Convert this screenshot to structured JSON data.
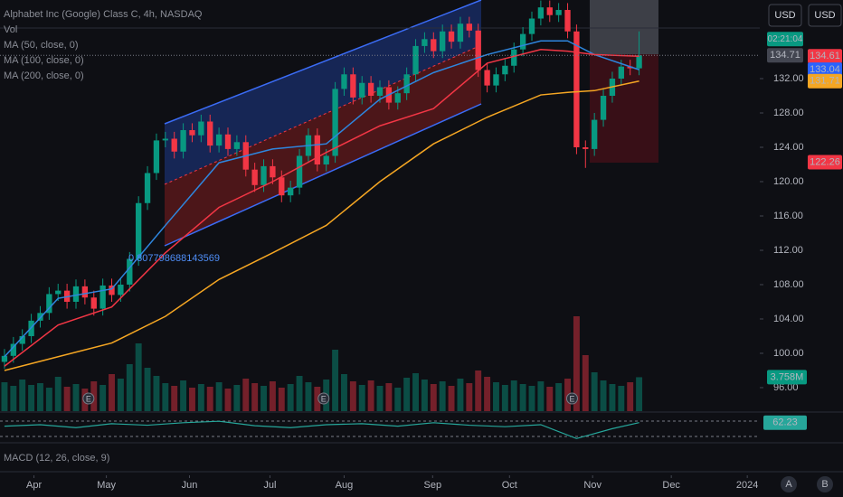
{
  "chart_data": {
    "type": "candlestick",
    "title": "Alphabet Inc (Google) Class C, 4h, NASDAQ",
    "legend_vol": "Vol",
    "ma_labels": [
      "MA (50, close, 0)",
      "MA (100, close, 0)",
      "MA (200, close, 0)"
    ],
    "macd_label": "MACD (12, 26, close, 9)",
    "channel_label": "0.807798688143569",
    "currency_buttons": [
      "USD",
      "USD"
    ],
    "scale_buttons": [
      "A",
      "B"
    ],
    "up_color": "#089981",
    "down_color": "#f23645",
    "xlim": [
      -0.5,
      84.5
    ],
    "ylim": [
      93.26,
      141.16
    ],
    "xticks": [
      {
        "value": 3.3,
        "label": "Apr"
      },
      {
        "value": 11.4,
        "label": "May"
      },
      {
        "value": 20.7,
        "label": "Jun"
      },
      {
        "value": 29.7,
        "label": "Jul"
      },
      {
        "value": 38,
        "label": "Aug"
      },
      {
        "value": 47.9,
        "label": "Sep"
      },
      {
        "value": 56.5,
        "label": "Oct"
      },
      {
        "value": 65.8,
        "label": "Nov"
      },
      {
        "value": 74.6,
        "label": "Dec"
      },
      {
        "value": 83.1,
        "label": "2024"
      }
    ],
    "yticks": [
      {
        "value": 96,
        "label": "96.00"
      },
      {
        "value": 100,
        "label": "100.00"
      },
      {
        "value": 104,
        "label": "104.00"
      },
      {
        "value": 108,
        "label": "108.00"
      },
      {
        "value": 112,
        "label": "112.00"
      },
      {
        "value": 116,
        "label": "116.00"
      },
      {
        "value": 120,
        "label": "120.00"
      },
      {
        "value": 124,
        "label": "124.00"
      },
      {
        "value": 128,
        "label": "128.00"
      },
      {
        "value": 132,
        "label": "132.00"
      }
    ],
    "open": [
      99.0,
      99.7,
      101.1,
      102.0,
      103.8,
      104.7,
      106.9,
      107.3,
      106.0,
      107.8,
      106.5,
      105.2,
      107.9,
      106.8,
      108.0,
      111.0,
      117.5,
      121.0,
      124.8,
      125.0,
      123.5,
      126.0,
      125.4,
      127.0,
      124.2,
      125.5,
      123.8,
      124.6,
      121.4,
      119.6,
      121.8,
      120.5,
      118.4,
      119.3,
      123.0,
      125.4,
      122.0,
      123.0,
      130.8,
      132.5,
      129.8,
      131.5,
      130.0,
      131.0,
      129.2,
      130.3,
      132.5,
      135.8,
      136.6,
      135.2,
      137.5,
      136.3,
      138.4,
      137.6,
      133.0,
      131.2,
      132.5,
      133.5,
      135.4,
      137.2,
      139.0,
      140.3,
      139.4,
      140.0,
      137.5,
      124.0,
      123.8,
      127.2,
      130.0,
      132.0,
      133.4,
      133.2
    ],
    "high": [
      100.5,
      101.9,
      102.8,
      104.6,
      105.5,
      107.7,
      108.1,
      108.1,
      108.6,
      108.6,
      107.3,
      108.7,
      108.7,
      108.8,
      111.8,
      118.3,
      121.8,
      125.6,
      125.8,
      125.8,
      126.8,
      126.8,
      127.8,
      127.8,
      126.3,
      126.3,
      125.4,
      125.4,
      122.2,
      122.6,
      122.6,
      121.3,
      120.1,
      123.8,
      126.2,
      126.2,
      123.8,
      131.6,
      133.3,
      133.3,
      132.3,
      132.3,
      131.8,
      131.8,
      131.1,
      133.3,
      136.6,
      137.4,
      137.4,
      138.3,
      138.3,
      139.2,
      139.2,
      138.4,
      133.8,
      133.3,
      134.3,
      136.2,
      138.0,
      139.8,
      141.1,
      141.1,
      140.8,
      140.8,
      138.3,
      124.8,
      128.0,
      130.8,
      132.8,
      134.2,
      134.2,
      137.5
    ],
    "low": [
      98.2,
      98.9,
      100.3,
      101.2,
      103.0,
      103.9,
      106.1,
      105.2,
      105.2,
      105.7,
      104.4,
      104.4,
      106.0,
      106.0,
      107.2,
      110.2,
      116.7,
      120.2,
      124.0,
      122.7,
      122.7,
      124.6,
      124.6,
      123.4,
      123.4,
      123.0,
      123.0,
      120.6,
      118.8,
      118.8,
      119.7,
      117.6,
      117.6,
      118.5,
      122.2,
      121.2,
      121.2,
      122.2,
      130.0,
      129.0,
      129.0,
      129.2,
      129.2,
      128.4,
      128.4,
      129.5,
      131.7,
      135.0,
      134.4,
      134.4,
      135.5,
      135.5,
      136.8,
      132.2,
      130.4,
      130.4,
      131.7,
      132.7,
      134.6,
      136.4,
      138.2,
      138.6,
      138.6,
      136.7,
      123.2,
      121.6,
      123.0,
      126.4,
      129.2,
      131.2,
      132.4,
      132.4
    ],
    "close": [
      99.7,
      101.1,
      102.0,
      103.8,
      104.7,
      106.9,
      107.3,
      106.0,
      107.8,
      106.5,
      105.2,
      107.9,
      106.8,
      108.0,
      111.0,
      117.5,
      121.0,
      124.8,
      125.0,
      123.5,
      126.0,
      125.4,
      127.0,
      124.2,
      125.5,
      123.8,
      124.6,
      121.4,
      119.6,
      121.8,
      120.5,
      118.4,
      119.3,
      123.0,
      125.4,
      122.0,
      123.0,
      130.8,
      132.5,
      129.8,
      131.5,
      130.0,
      131.0,
      129.2,
      130.3,
      132.5,
      135.8,
      136.6,
      135.2,
      137.5,
      136.3,
      138.4,
      137.6,
      133.0,
      131.2,
      132.5,
      133.5,
      135.4,
      137.2,
      139.0,
      140.3,
      139.4,
      140.0,
      137.5,
      124.0,
      123.8,
      127.2,
      130.0,
      132.0,
      133.4,
      133.2,
      134.71
    ],
    "volume": [
      3.2,
      2.8,
      3.5,
      2.9,
      3.1,
      2.6,
      3.8,
      2.7,
      3.0,
      2.5,
      3.3,
      2.9,
      4.1,
      3.6,
      5.2,
      7.5,
      4.8,
      3.9,
      3.1,
      2.8,
      3.4,
      2.6,
      3.0,
      2.7,
      3.2,
      2.5,
      2.9,
      3.6,
      3.1,
      2.8,
      3.3,
      2.6,
      3.0,
      3.9,
      3.2,
      2.7,
      3.5,
      6.8,
      4.1,
      3.3,
      2.9,
      3.4,
      2.8,
      3.1,
      2.6,
      3.7,
      4.2,
      3.5,
      3.0,
      3.3,
      2.8,
      3.6,
      3.1,
      4.5,
      3.8,
      3.2,
      2.9,
      3.4,
      3.0,
      2.8,
      3.3,
      2.7,
      3.1,
      3.6,
      10.5,
      6.2,
      4.3,
      3.4,
      3.0,
      2.8,
      3.2,
      3.758
    ],
    "vlim": [
      0,
      12
    ],
    "volume_last_label": "3.758M",
    "moving_averages": [
      {
        "name": "MA (50, close, 0)",
        "color": "#2e86de",
        "x": [
          0,
          6,
          12,
          18,
          24,
          30,
          36,
          42,
          48,
          54,
          60,
          63,
          66,
          71
        ],
        "values": [
          99.6,
          106.4,
          107.5,
          114.9,
          122.2,
          123.8,
          124.4,
          129.6,
          132.7,
          134.8,
          136.4,
          136.4,
          134.8,
          133.04
        ]
      },
      {
        "name": "MA (100, close, 0)",
        "color": "#f23645",
        "x": [
          0,
          6,
          12,
          18,
          24,
          30,
          36,
          42,
          48,
          54,
          60,
          63,
          66,
          71
        ],
        "values": [
          98.5,
          103.3,
          105.4,
          111.7,
          117.0,
          120.0,
          123.4,
          126.5,
          128.5,
          133.8,
          135.4,
          135.2,
          134.8,
          134.61
        ]
      },
      {
        "name": "MA (200, close, 0)",
        "color": "#f5a623",
        "x": [
          0,
          6,
          12,
          18,
          24,
          30,
          36,
          42,
          48,
          54,
          60,
          63,
          66,
          71
        ],
        "values": [
          98.0,
          99.6,
          101.2,
          104.3,
          108.6,
          111.7,
          114.9,
          120.0,
          124.4,
          127.5,
          130.1,
          130.4,
          130.6,
          131.71
        ]
      }
    ],
    "rsi": {
      "color": "#26a69a",
      "x": [
        0,
        4,
        8,
        12,
        16,
        20,
        24,
        28,
        32,
        36,
        40,
        44,
        48,
        52,
        56,
        60,
        64,
        68,
        71
      ],
      "values": [
        55,
        58,
        52,
        60,
        57,
        62,
        65,
        56,
        52,
        58,
        60,
        55,
        62,
        57,
        54,
        58,
        30,
        50,
        62.23
      ],
      "lim": [
        25,
        80
      ],
      "label": "62.23"
    },
    "price_tags": [
      {
        "value": 134.61,
        "label": "134.61",
        "color": "#f23645"
      },
      {
        "value": 133.04,
        "label": "133.04",
        "color": "#2962ff"
      },
      {
        "value": 131.71,
        "label": "131.71",
        "color": "#f5a623"
      },
      {
        "value": 122.26,
        "label": "122.26",
        "color": "#f23645"
      }
    ],
    "last_price": {
      "value": 134.71,
      "label": "134.71",
      "countdown": "02:21:04"
    },
    "earnings": [
      {
        "x": 9.4,
        "label": "E"
      },
      {
        "x": 35.7,
        "label": "E"
      },
      {
        "x": 63.5,
        "label": "E"
      }
    ]
  }
}
